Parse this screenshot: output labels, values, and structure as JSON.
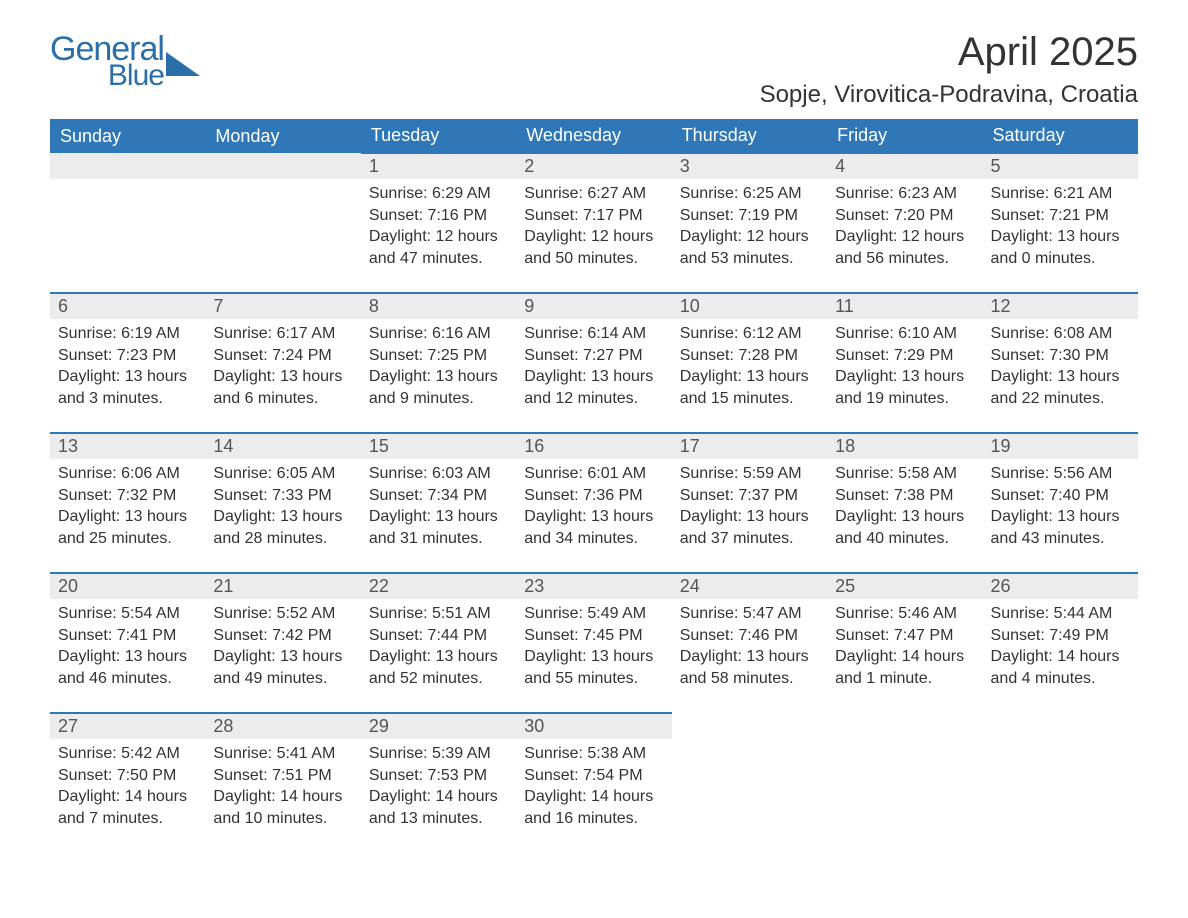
{
  "logo": {
    "text1": "General",
    "text2": "Blue",
    "color": "#2b6faa",
    "triangle_color": "#2b6faa"
  },
  "title": "April 2025",
  "location": "Sopje, Virovitica-Podravina, Croatia",
  "colors": {
    "header_bg": "#3077b8",
    "header_text": "#ffffff",
    "daynum_bg": "#ececec",
    "daynum_text": "#555555",
    "body_text": "#333333",
    "border": "#3077b8",
    "page_bg": "#ffffff"
  },
  "fonts": {
    "title_size": 40,
    "location_size": 24,
    "header_size": 18,
    "daynum_size": 18,
    "body_size": 16
  },
  "day_headers": [
    "Sunday",
    "Monday",
    "Tuesday",
    "Wednesday",
    "Thursday",
    "Friday",
    "Saturday"
  ],
  "weeks": [
    [
      {
        "empty": true
      },
      {
        "empty": true
      },
      {
        "num": "1",
        "sunrise": "Sunrise: 6:29 AM",
        "sunset": "Sunset: 7:16 PM",
        "daylight1": "Daylight: 12 hours",
        "daylight2": "and 47 minutes."
      },
      {
        "num": "2",
        "sunrise": "Sunrise: 6:27 AM",
        "sunset": "Sunset: 7:17 PM",
        "daylight1": "Daylight: 12 hours",
        "daylight2": "and 50 minutes."
      },
      {
        "num": "3",
        "sunrise": "Sunrise: 6:25 AM",
        "sunset": "Sunset: 7:19 PM",
        "daylight1": "Daylight: 12 hours",
        "daylight2": "and 53 minutes."
      },
      {
        "num": "4",
        "sunrise": "Sunrise: 6:23 AM",
        "sunset": "Sunset: 7:20 PM",
        "daylight1": "Daylight: 12 hours",
        "daylight2": "and 56 minutes."
      },
      {
        "num": "5",
        "sunrise": "Sunrise: 6:21 AM",
        "sunset": "Sunset: 7:21 PM",
        "daylight1": "Daylight: 13 hours",
        "daylight2": "and 0 minutes."
      }
    ],
    [
      {
        "num": "6",
        "sunrise": "Sunrise: 6:19 AM",
        "sunset": "Sunset: 7:23 PM",
        "daylight1": "Daylight: 13 hours",
        "daylight2": "and 3 minutes."
      },
      {
        "num": "7",
        "sunrise": "Sunrise: 6:17 AM",
        "sunset": "Sunset: 7:24 PM",
        "daylight1": "Daylight: 13 hours",
        "daylight2": "and 6 minutes."
      },
      {
        "num": "8",
        "sunrise": "Sunrise: 6:16 AM",
        "sunset": "Sunset: 7:25 PM",
        "daylight1": "Daylight: 13 hours",
        "daylight2": "and 9 minutes."
      },
      {
        "num": "9",
        "sunrise": "Sunrise: 6:14 AM",
        "sunset": "Sunset: 7:27 PM",
        "daylight1": "Daylight: 13 hours",
        "daylight2": "and 12 minutes."
      },
      {
        "num": "10",
        "sunrise": "Sunrise: 6:12 AM",
        "sunset": "Sunset: 7:28 PM",
        "daylight1": "Daylight: 13 hours",
        "daylight2": "and 15 minutes."
      },
      {
        "num": "11",
        "sunrise": "Sunrise: 6:10 AM",
        "sunset": "Sunset: 7:29 PM",
        "daylight1": "Daylight: 13 hours",
        "daylight2": "and 19 minutes."
      },
      {
        "num": "12",
        "sunrise": "Sunrise: 6:08 AM",
        "sunset": "Sunset: 7:30 PM",
        "daylight1": "Daylight: 13 hours",
        "daylight2": "and 22 minutes."
      }
    ],
    [
      {
        "num": "13",
        "sunrise": "Sunrise: 6:06 AM",
        "sunset": "Sunset: 7:32 PM",
        "daylight1": "Daylight: 13 hours",
        "daylight2": "and 25 minutes."
      },
      {
        "num": "14",
        "sunrise": "Sunrise: 6:05 AM",
        "sunset": "Sunset: 7:33 PM",
        "daylight1": "Daylight: 13 hours",
        "daylight2": "and 28 minutes."
      },
      {
        "num": "15",
        "sunrise": "Sunrise: 6:03 AM",
        "sunset": "Sunset: 7:34 PM",
        "daylight1": "Daylight: 13 hours",
        "daylight2": "and 31 minutes."
      },
      {
        "num": "16",
        "sunrise": "Sunrise: 6:01 AM",
        "sunset": "Sunset: 7:36 PM",
        "daylight1": "Daylight: 13 hours",
        "daylight2": "and 34 minutes."
      },
      {
        "num": "17",
        "sunrise": "Sunrise: 5:59 AM",
        "sunset": "Sunset: 7:37 PM",
        "daylight1": "Daylight: 13 hours",
        "daylight2": "and 37 minutes."
      },
      {
        "num": "18",
        "sunrise": "Sunrise: 5:58 AM",
        "sunset": "Sunset: 7:38 PM",
        "daylight1": "Daylight: 13 hours",
        "daylight2": "and 40 minutes."
      },
      {
        "num": "19",
        "sunrise": "Sunrise: 5:56 AM",
        "sunset": "Sunset: 7:40 PM",
        "daylight1": "Daylight: 13 hours",
        "daylight2": "and 43 minutes."
      }
    ],
    [
      {
        "num": "20",
        "sunrise": "Sunrise: 5:54 AM",
        "sunset": "Sunset: 7:41 PM",
        "daylight1": "Daylight: 13 hours",
        "daylight2": "and 46 minutes."
      },
      {
        "num": "21",
        "sunrise": "Sunrise: 5:52 AM",
        "sunset": "Sunset: 7:42 PM",
        "daylight1": "Daylight: 13 hours",
        "daylight2": "and 49 minutes."
      },
      {
        "num": "22",
        "sunrise": "Sunrise: 5:51 AM",
        "sunset": "Sunset: 7:44 PM",
        "daylight1": "Daylight: 13 hours",
        "daylight2": "and 52 minutes."
      },
      {
        "num": "23",
        "sunrise": "Sunrise: 5:49 AM",
        "sunset": "Sunset: 7:45 PM",
        "daylight1": "Daylight: 13 hours",
        "daylight2": "and 55 minutes."
      },
      {
        "num": "24",
        "sunrise": "Sunrise: 5:47 AM",
        "sunset": "Sunset: 7:46 PM",
        "daylight1": "Daylight: 13 hours",
        "daylight2": "and 58 minutes."
      },
      {
        "num": "25",
        "sunrise": "Sunrise: 5:46 AM",
        "sunset": "Sunset: 7:47 PM",
        "daylight1": "Daylight: 14 hours",
        "daylight2": "and 1 minute."
      },
      {
        "num": "26",
        "sunrise": "Sunrise: 5:44 AM",
        "sunset": "Sunset: 7:49 PM",
        "daylight1": "Daylight: 14 hours",
        "daylight2": "and 4 minutes."
      }
    ],
    [
      {
        "num": "27",
        "sunrise": "Sunrise: 5:42 AM",
        "sunset": "Sunset: 7:50 PM",
        "daylight1": "Daylight: 14 hours",
        "daylight2": "and 7 minutes."
      },
      {
        "num": "28",
        "sunrise": "Sunrise: 5:41 AM",
        "sunset": "Sunset: 7:51 PM",
        "daylight1": "Daylight: 14 hours",
        "daylight2": "and 10 minutes."
      },
      {
        "num": "29",
        "sunrise": "Sunrise: 5:39 AM",
        "sunset": "Sunset: 7:53 PM",
        "daylight1": "Daylight: 14 hours",
        "daylight2": "and 13 minutes."
      },
      {
        "num": "30",
        "sunrise": "Sunrise: 5:38 AM",
        "sunset": "Sunset: 7:54 PM",
        "daylight1": "Daylight: 14 hours",
        "daylight2": "and 16 minutes."
      },
      {
        "blank": true
      },
      {
        "blank": true
      },
      {
        "blank": true
      }
    ]
  ]
}
